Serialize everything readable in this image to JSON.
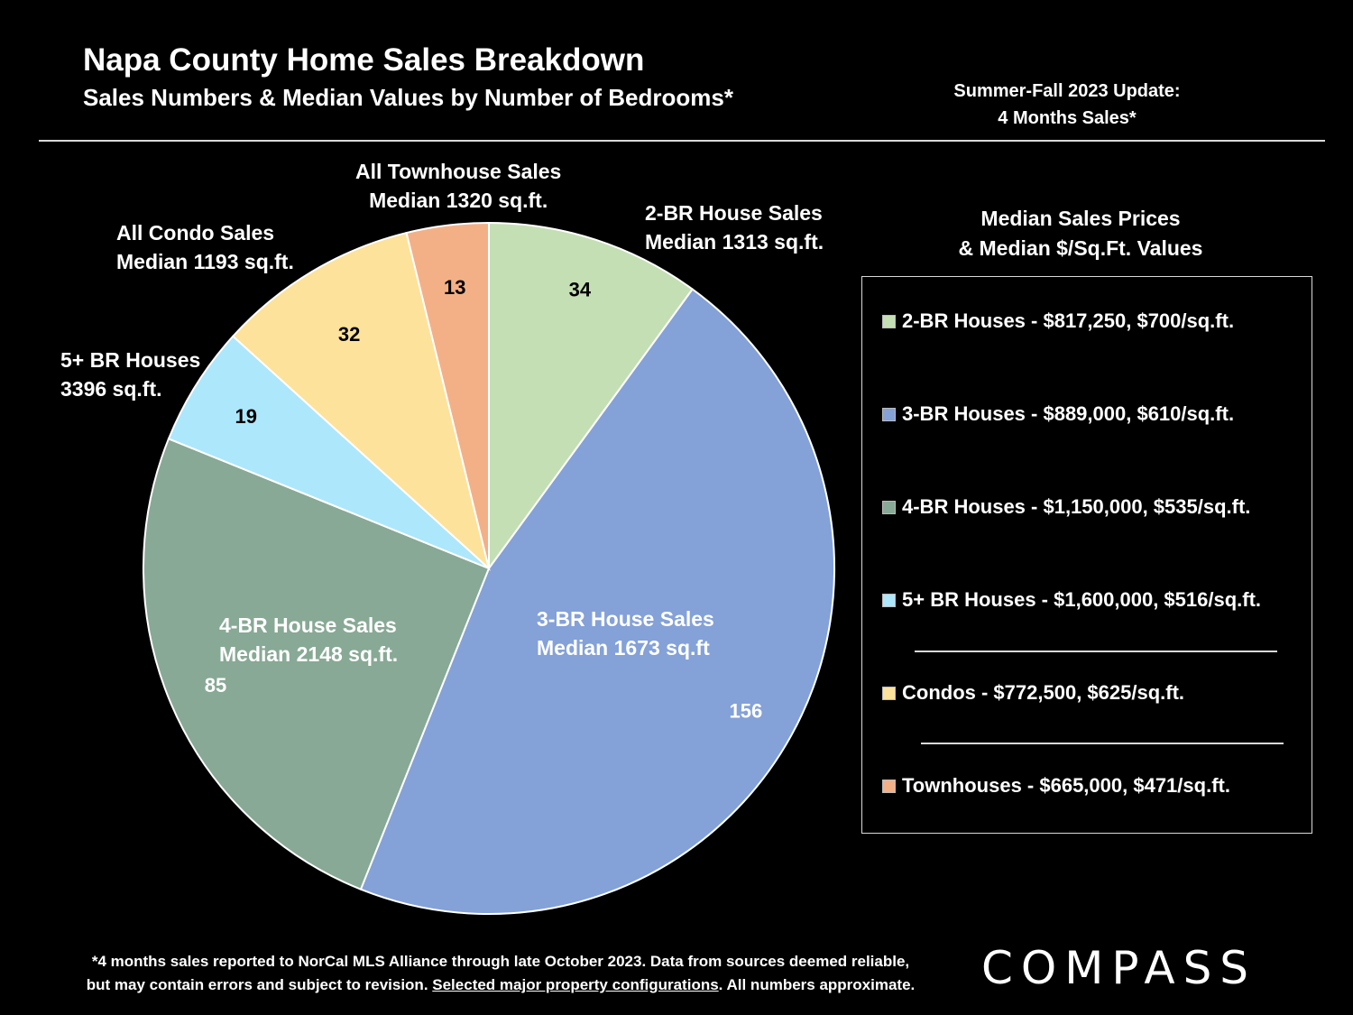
{
  "header": {
    "title": "Napa County Home Sales Breakdown",
    "subtitle": "Sales Numbers & Median Values by Number of Bedrooms*",
    "update_line1": "Summer-Fall 2023 Update:",
    "update_line2": "4 Months Sales*"
  },
  "chart_data": {
    "type": "pie",
    "title": "Napa County Home Sales Breakdown",
    "subtitle": "Sales Numbers & Median Values by Number of Bedrooms*",
    "slices": [
      {
        "name": "2-BR House Sales",
        "value": 34,
        "value_label": "34",
        "label_line1": "2-BR House Sales",
        "label_line2": "Median 1313 sq.ft.",
        "color": "#c5dfb5"
      },
      {
        "name": "3-BR House Sales",
        "value": 156,
        "value_label": "156",
        "label_line1": "3-BR House Sales",
        "label_line2": "Median 1673 sq.ft",
        "color": "#84a1d8"
      },
      {
        "name": "4-BR House Sales",
        "value": 85,
        "value_label": "85",
        "label_line1": "4-BR House Sales",
        "label_line2": "Median 2148 sq.ft.",
        "color": "#88a995"
      },
      {
        "name": "5+ BR Houses",
        "value": 19,
        "value_label": "19",
        "label_line1": "5+ BR Houses",
        "label_line2": "3396 sq.ft.",
        "color": "#ade7fb"
      },
      {
        "name": "All Condo Sales",
        "value": 32,
        "value_label": "32",
        "label_line1": "All Condo Sales",
        "label_line2": "Median 1193 sq.ft.",
        "color": "#fde29b"
      },
      {
        "name": "All Townhouse Sales",
        "value": 13,
        "value_label": "13",
        "label_line1": "All Townhouse Sales",
        "label_line2": "Median 1320 sq.ft.",
        "color": "#f3b087"
      }
    ]
  },
  "legend": {
    "heading_line1": "Median Sales Prices",
    "heading_line2": "& Median $/Sq.Ft. Values",
    "items": [
      {
        "label": "2-BR Houses - $817,250, $700/sq.ft.",
        "color": "#c5dfb5"
      },
      {
        "label": "3-BR Houses - $889,000, $610/sq.ft.",
        "color": "#84a1d8"
      },
      {
        "label": "4-BR Houses - $1,150,000, $535/sq.ft.",
        "color": "#88a995"
      },
      {
        "label": "5+ BR Houses - $1,600,000, $516/sq.ft.",
        "color": "#ade7fb"
      },
      {
        "label": "Condos - $772,500, $625/sq.ft.",
        "color": "#fde29b"
      },
      {
        "label": "Townhouses - $665,000, $471/sq.ft.",
        "color": "#f3b087"
      }
    ]
  },
  "footnote": {
    "line1": "*4 months sales reported to NorCal MLS Alliance through late October 2023. Data from sources deemed reliable,",
    "line2_pre": "but may contain errors and subject to revision. ",
    "line2_link": "Selected major property configurations",
    "line2_post": ". All numbers approximate."
  },
  "brand": {
    "logo_text": "COMPASS"
  }
}
